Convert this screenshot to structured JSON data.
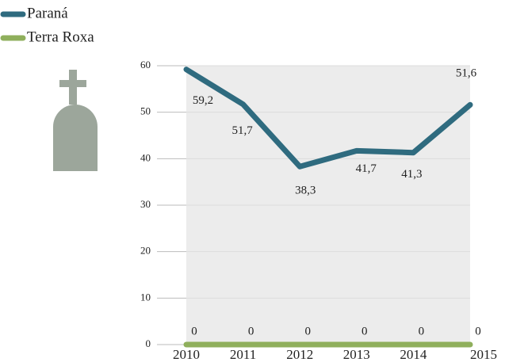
{
  "chart_data": {
    "type": "line",
    "categories": [
      "2010",
      "2011",
      "2012",
      "2013",
      "2014",
      "2015"
    ],
    "series": [
      {
        "name": "Paraná",
        "color": "#2f6b7f",
        "values": [
          59.2,
          51.7,
          38.3,
          41.7,
          41.3,
          51.6
        ],
        "value_labels": [
          "59,2",
          "51,7",
          "38,3",
          "41,7",
          "41,3",
          "51,6"
        ]
      },
      {
        "name": "Terra Roxa",
        "color": "#8faf5c",
        "values": [
          0,
          0,
          0,
          0,
          0,
          0
        ]
      }
    ],
    "ylim": [
      0,
      60
    ],
    "yticks": [
      0,
      10,
      20,
      30,
      40,
      50,
      60
    ],
    "grid": true
  }
}
